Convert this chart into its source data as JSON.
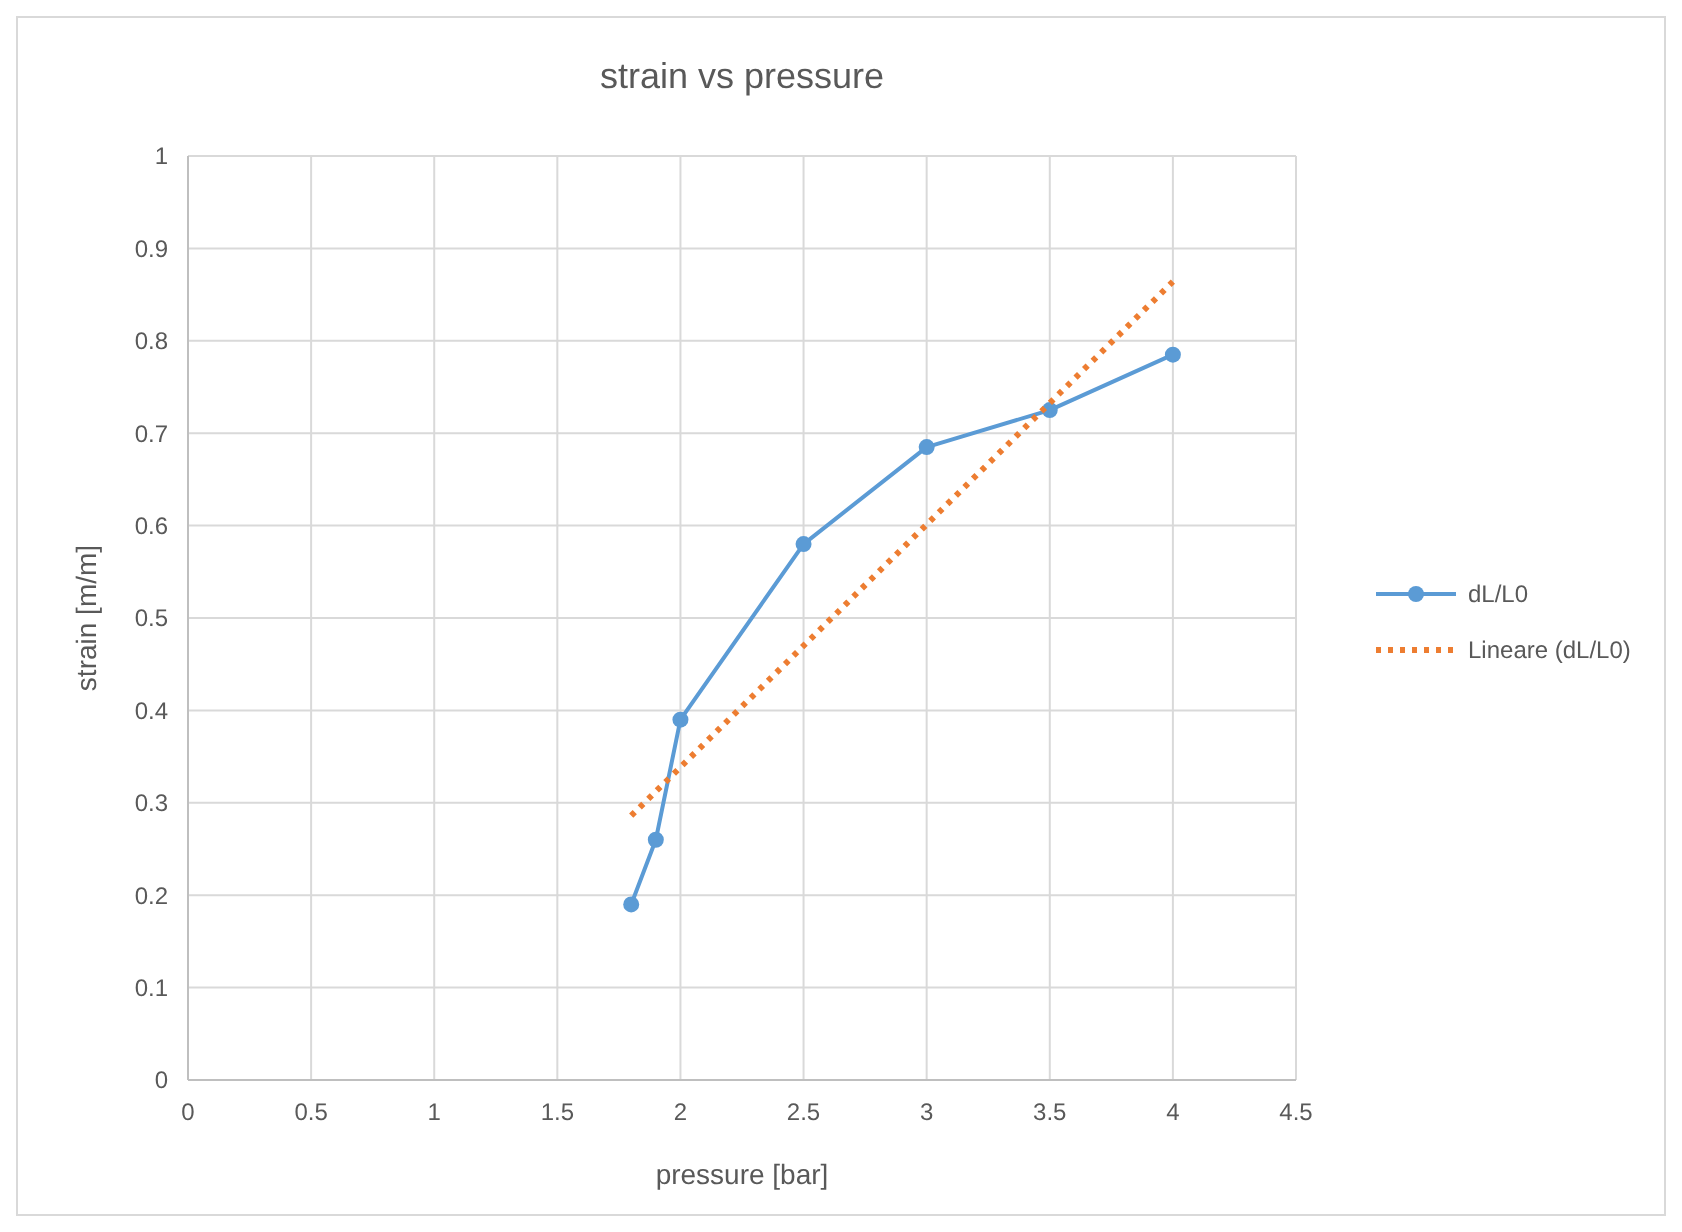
{
  "chart_data": {
    "type": "line",
    "title": "strain vs pressure",
    "xlabel": "pressure [bar]",
    "ylabel": "strain [m/m]",
    "x": [
      1.8,
      1.9,
      2.0,
      2.5,
      3.0,
      3.5,
      4.0
    ],
    "series": [
      {
        "name": "dL/L0",
        "color": "#5b9bd5",
        "values": [
          0.19,
          0.26,
          0.39,
          0.58,
          0.685,
          0.725,
          0.785
        ],
        "marker": "circle",
        "line_style": "solid"
      },
      {
        "name": "Lineare (dL/L0)",
        "color": "#ed7d31",
        "x": [
          1.8,
          4.0
        ],
        "values": [
          0.286,
          0.864
        ],
        "marker": "none",
        "line_style": "dotted"
      }
    ],
    "xlim": [
      0,
      4.5
    ],
    "xticks": [
      0,
      0.5,
      1,
      1.5,
      2,
      2.5,
      3,
      3.5,
      4,
      4.5
    ],
    "ylim": [
      0,
      1
    ],
    "yticks": [
      0,
      0.1,
      0.2,
      0.3,
      0.4,
      0.5,
      0.6,
      0.7,
      0.8,
      0.9,
      1
    ],
    "grid": true,
    "legend": "right"
  }
}
